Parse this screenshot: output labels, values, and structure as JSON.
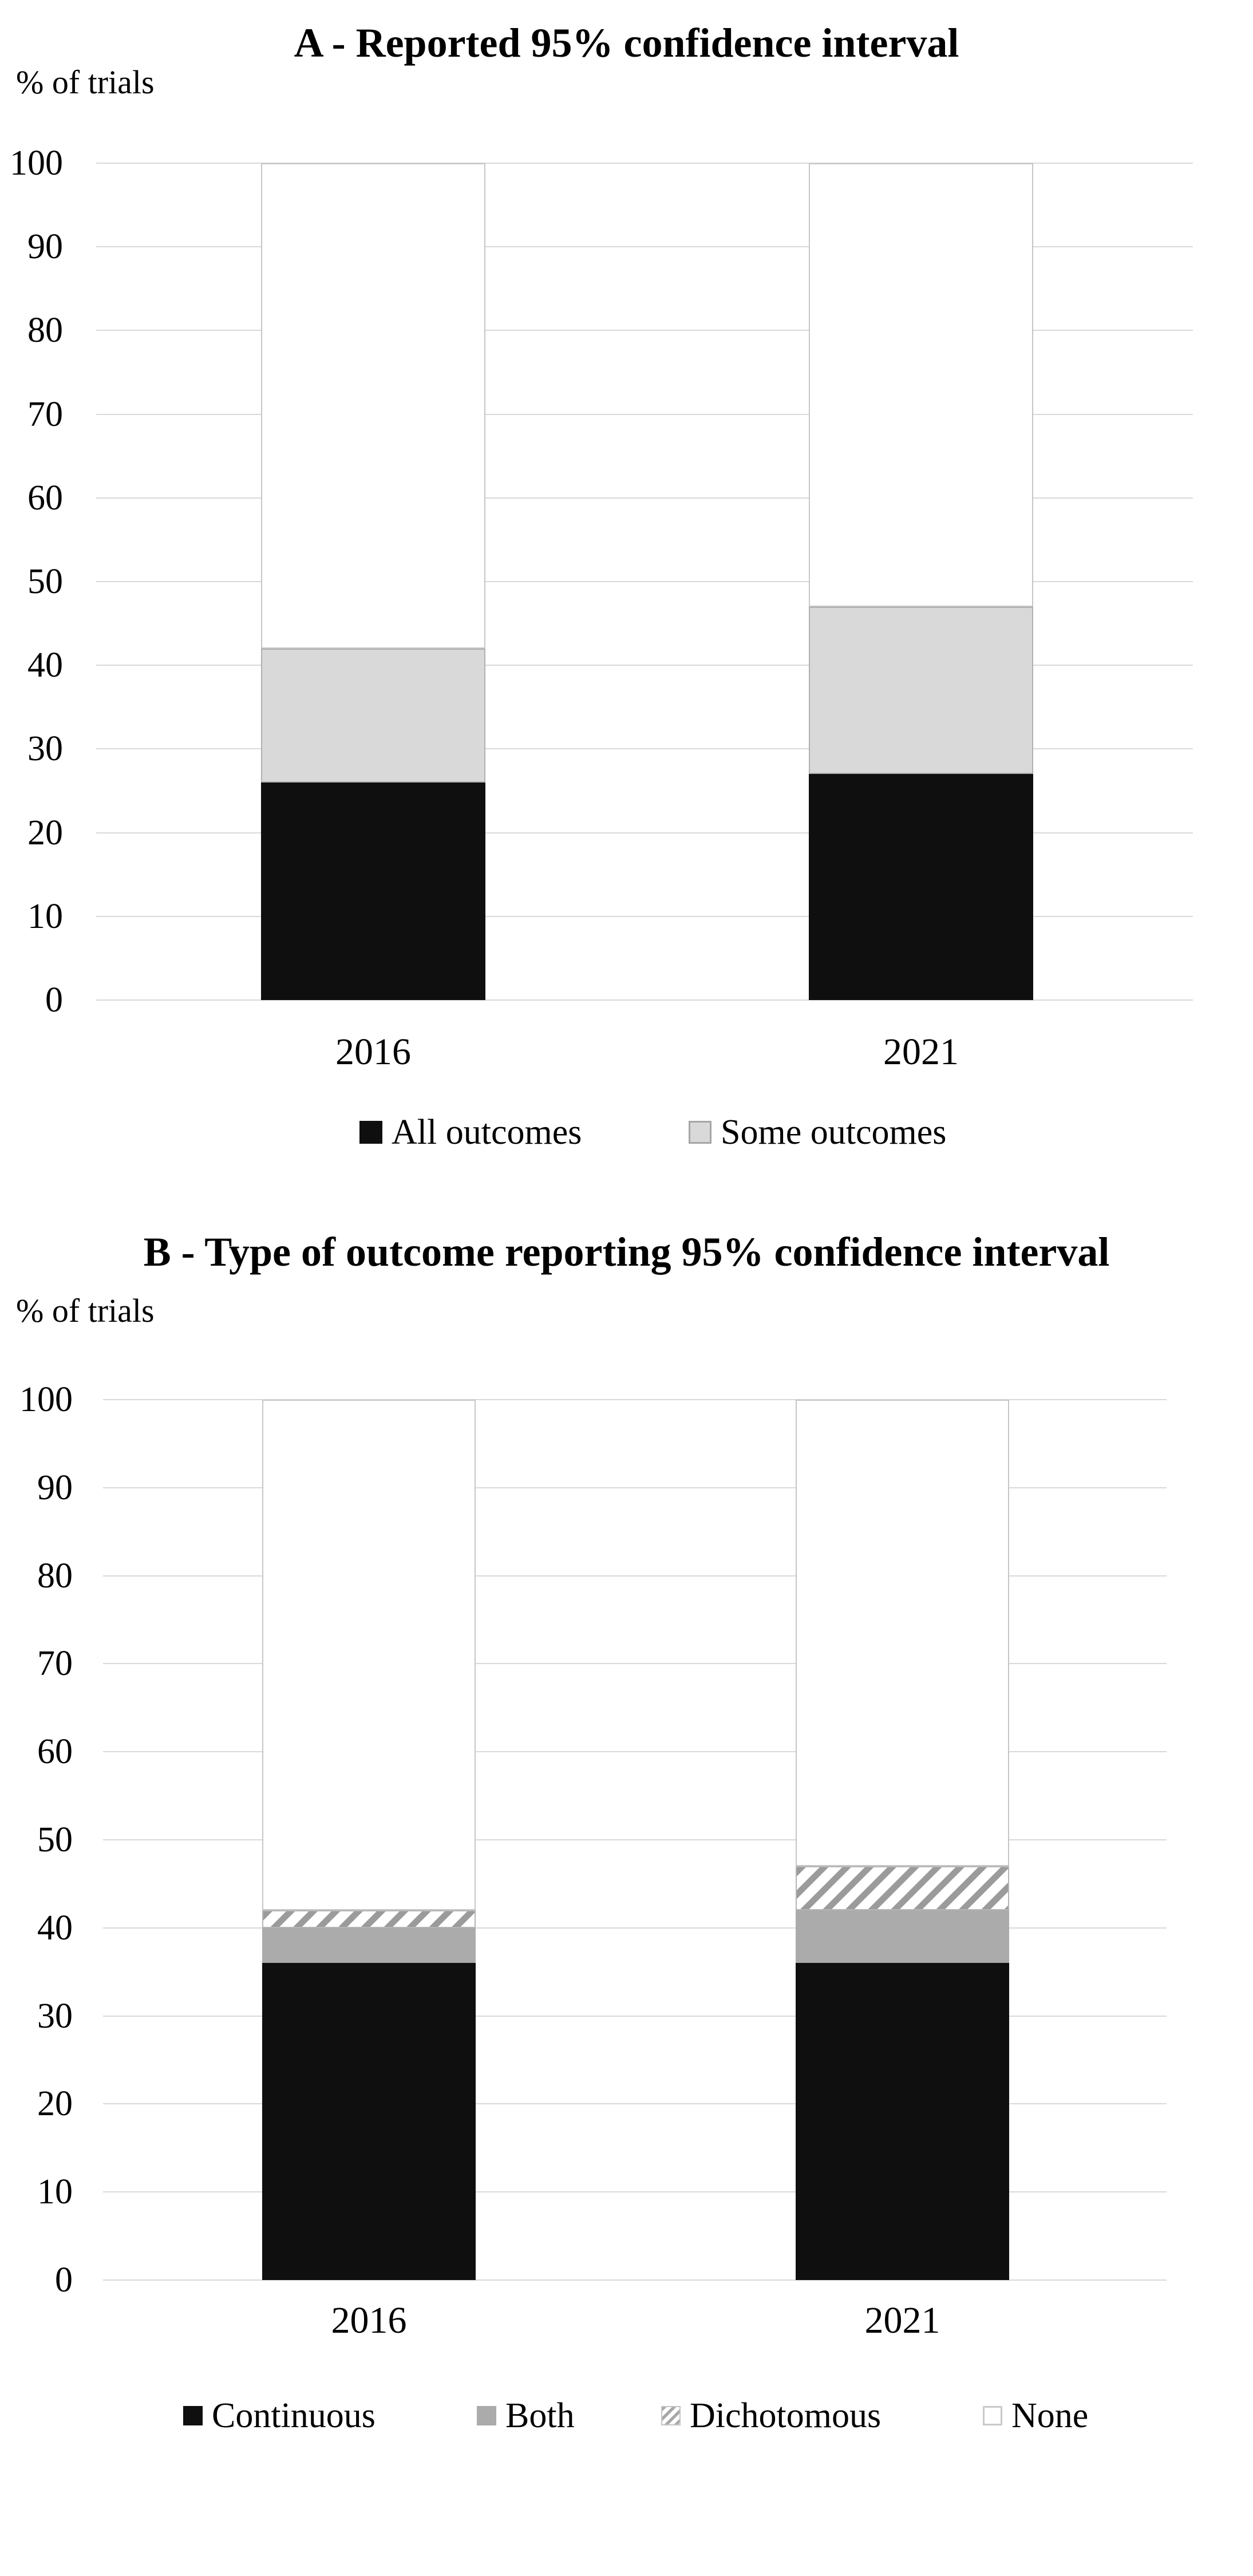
{
  "figure": {
    "background": "#ffffff"
  },
  "colors": {
    "black": "#0f0f0f",
    "lightgray": "#d9d9d9",
    "gray": "#ababab",
    "hatch_stripe": "#9b9b9b",
    "grid": "#d9d9d9",
    "outline": "#c6c6c6",
    "text": "#000000"
  },
  "chart_data": [
    {
      "panel": "A",
      "type": "bar",
      "stacked": true,
      "title": "A - Reported 95% confidence interval",
      "ylabel": "% of trials",
      "categories": [
        "2016",
        "2021"
      ],
      "ylim": [
        0,
        100
      ],
      "ytick_step": 10,
      "grid": true,
      "legend_position": "bottom",
      "series": [
        {
          "name": "All outcomes",
          "pattern": "solid-black",
          "values": [
            26,
            27
          ],
          "in_legend": true
        },
        {
          "name": "Some outcomes",
          "pattern": "solid-lightgray",
          "values": [
            16,
            20
          ],
          "in_legend": true
        },
        {
          "name": "",
          "pattern": "white-outline",
          "values": [
            58,
            53
          ],
          "in_legend": false
        }
      ]
    },
    {
      "panel": "B",
      "type": "bar",
      "stacked": true,
      "title": "B - Type of outcome reporting 95% confidence interval",
      "ylabel": "% of trials",
      "categories": [
        "2016",
        "2021"
      ],
      "ylim": [
        0,
        100
      ],
      "ytick_step": 10,
      "grid": true,
      "legend_position": "bottom",
      "series": [
        {
          "name": "Continuous",
          "pattern": "solid-black",
          "values": [
            36,
            36
          ],
          "in_legend": true
        },
        {
          "name": "Both",
          "pattern": "solid-gray",
          "values": [
            4,
            6
          ],
          "in_legend": true
        },
        {
          "name": "Dichotomous",
          "pattern": "hatch-diagonal",
          "values": [
            2,
            5
          ],
          "in_legend": true
        },
        {
          "name": "None",
          "pattern": "white-outline",
          "values": [
            58,
            53
          ],
          "in_legend": true
        }
      ]
    }
  ]
}
